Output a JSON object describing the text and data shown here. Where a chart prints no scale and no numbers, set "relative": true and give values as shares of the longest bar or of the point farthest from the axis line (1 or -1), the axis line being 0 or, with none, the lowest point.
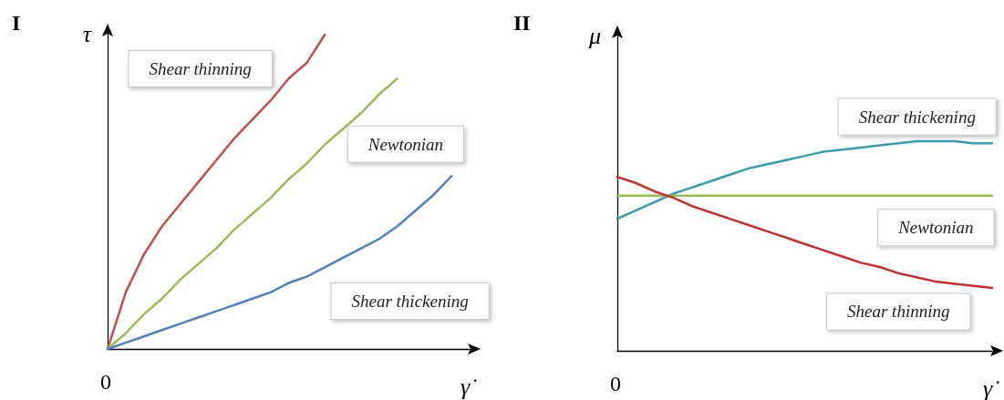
{
  "chart_data": [
    {
      "type": "line",
      "title": "I",
      "xlabel": "γ̇",
      "ylabel": "τ",
      "relative": true,
      "line_style": "solid",
      "marker": "none",
      "annotations": [
        "0"
      ],
      "categories": [
        null,
        null,
        null,
        null,
        null,
        null,
        null,
        null,
        null,
        null,
        null,
        null,
        null,
        null,
        null,
        null,
        null,
        null,
        null,
        null,
        null
      ],
      "series": [
        {
          "name": "Shear thinning",
          "color": "#c0504d",
          "values": [
            0,
            0.18,
            0.3,
            0.39,
            0.46,
            0.53,
            0.6,
            0.67,
            0.73,
            0.79,
            0.86,
            0.91,
            1,
            null,
            null,
            null,
            null,
            null,
            null,
            null,
            null
          ]
        },
        {
          "name": "Newtonian",
          "color": "#9bbb59",
          "values": [
            0,
            0.05,
            0.11,
            0.16,
            0.22,
            0.27,
            0.32,
            0.38,
            0.43,
            0.48,
            0.54,
            0.59,
            0.65,
            0.7,
            0.75,
            0.81,
            0.86,
            null,
            null,
            null,
            null
          ]
        },
        {
          "name": "Shear thickening",
          "color": "#4f81bd",
          "values": [
            0,
            0.02,
            0.04,
            0.06,
            0.08,
            0.1,
            0.12,
            0.14,
            0.16,
            0.18,
            0.21,
            0.23,
            0.26,
            0.29,
            0.32,
            0.35,
            0.39,
            0.44,
            0.49,
            0.55,
            null
          ]
        }
      ]
    },
    {
      "type": "line",
      "title": "II",
      "xlabel": "γ̇",
      "ylabel": "μ",
      "relative": true,
      "line_style": "solid",
      "marker": "none",
      "annotations": [
        "0"
      ],
      "categories": [
        null,
        null,
        null,
        null,
        null,
        null,
        null,
        null,
        null,
        null,
        null,
        null,
        null,
        null,
        null,
        null,
        null,
        null,
        null,
        null,
        null
      ],
      "series": [
        {
          "name": "Shear thickening",
          "color": "#3a9bae",
          "values": [
            0.63,
            0.67,
            0.71,
            0.75,
            0.78,
            0.81,
            0.84,
            0.87,
            0.89,
            0.91,
            0.93,
            0.95,
            0.96,
            0.97,
            0.98,
            0.99,
            1,
            1,
            1,
            0.99,
            0.99
          ]
        },
        {
          "name": "Newtonian",
          "color": "#9bbb59",
          "values": [
            0.74,
            0.74,
            0.74,
            0.74,
            0.74,
            0.74,
            0.74,
            0.74,
            0.74,
            0.74,
            0.74,
            0.74,
            0.74,
            0.74,
            0.74,
            0.74,
            0.74,
            0.74,
            0.74,
            0.74,
            0.74
          ]
        },
        {
          "name": "Shear thinning",
          "color": "#c0302d",
          "values": [
            0.83,
            0.8,
            0.76,
            0.73,
            0.69,
            0.66,
            0.63,
            0.6,
            0.57,
            0.54,
            0.51,
            0.48,
            0.45,
            0.42,
            0.4,
            0.37,
            0.35,
            0.33,
            0.32,
            0.31,
            0.3
          ]
        }
      ]
    }
  ]
}
